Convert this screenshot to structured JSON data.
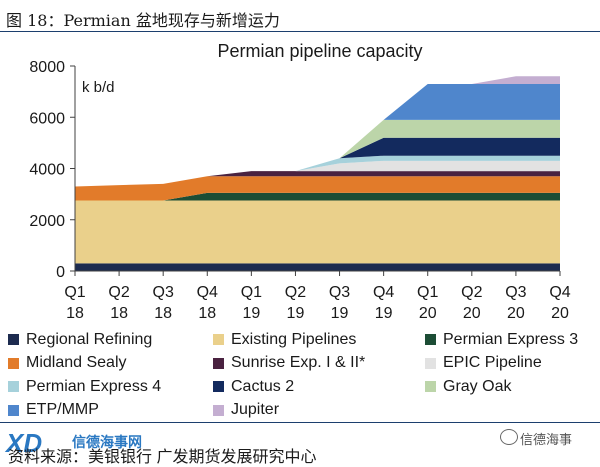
{
  "figure": {
    "title": "图 18：Permian 盆地现存与新增运力",
    "source": "资料来源：美银银行  广发期货发展研究中心",
    "logo_text": "XD",
    "logo_cn": "信德海事网",
    "wechat_name": "信德海事"
  },
  "chart_data": {
    "type": "area",
    "stacked": true,
    "title": "Permian pipeline capacity",
    "unit": "k b/d",
    "ylim": [
      0,
      8000
    ],
    "yticks": [
      0,
      2000,
      4000,
      6000,
      8000
    ],
    "x_labels": [
      [
        "Q1",
        "18"
      ],
      [
        "Q2",
        "18"
      ],
      [
        "Q3",
        "18"
      ],
      [
        "Q4",
        "18"
      ],
      [
        "Q1",
        "19"
      ],
      [
        "Q2",
        "19"
      ],
      [
        "Q3",
        "19"
      ],
      [
        "Q4",
        "19"
      ],
      [
        "Q1",
        "20"
      ],
      [
        "Q2",
        "20"
      ],
      [
        "Q3",
        "20"
      ],
      [
        "Q4",
        "20"
      ]
    ],
    "series": [
      {
        "name": "Regional Refining",
        "color": "#1d2b4f",
        "values": [
          300,
          300,
          300,
          300,
          300,
          300,
          300,
          300,
          300,
          300,
          300,
          300
        ]
      },
      {
        "name": "Existing Pipelines",
        "color": "#ead08b",
        "values": [
          2450,
          2450,
          2450,
          2450,
          2450,
          2450,
          2450,
          2450,
          2450,
          2450,
          2450,
          2450
        ]
      },
      {
        "name": "Permian Express 3",
        "color": "#1c4d35",
        "values": [
          0,
          0,
          0,
          300,
          300,
          300,
          300,
          300,
          300,
          300,
          300,
          300
        ]
      },
      {
        "name": "Midland Sealy",
        "color": "#e27b2a",
        "values": [
          550,
          600,
          650,
          650,
          650,
          650,
          650,
          650,
          650,
          650,
          650,
          650
        ]
      },
      {
        "name": "Sunrise Exp. I & II*",
        "color": "#4a2240",
        "values": [
          0,
          0,
          0,
          0,
          200,
          200,
          200,
          200,
          200,
          200,
          200,
          200
        ]
      },
      {
        "name": "EPIC Pipeline",
        "color": "#e2e2e2",
        "values": [
          0,
          0,
          0,
          0,
          0,
          0,
          300,
          400,
          400,
          400,
          400,
          400
        ]
      },
      {
        "name": "Permian Express 4",
        "color": "#a6d1db",
        "values": [
          0,
          0,
          0,
          0,
          0,
          0,
          200,
          200,
          200,
          200,
          200,
          200
        ]
      },
      {
        "name": "Cactus 2",
        "color": "#132a5e",
        "values": [
          0,
          0,
          0,
          0,
          0,
          0,
          0,
          700,
          700,
          700,
          700,
          700
        ]
      },
      {
        "name": "Gray Oak",
        "color": "#bcd5a9",
        "values": [
          0,
          0,
          0,
          0,
          0,
          0,
          0,
          700,
          700,
          700,
          700,
          700
        ]
      },
      {
        "name": "ETP/MMP",
        "color": "#4f86cc",
        "values": [
          0,
          0,
          0,
          0,
          0,
          0,
          0,
          0,
          1400,
          1400,
          1400,
          1400
        ]
      },
      {
        "name": "Jupiter",
        "color": "#c4aed1",
        "values": [
          0,
          0,
          0,
          0,
          0,
          0,
          0,
          0,
          0,
          0,
          300,
          300
        ]
      }
    ]
  }
}
